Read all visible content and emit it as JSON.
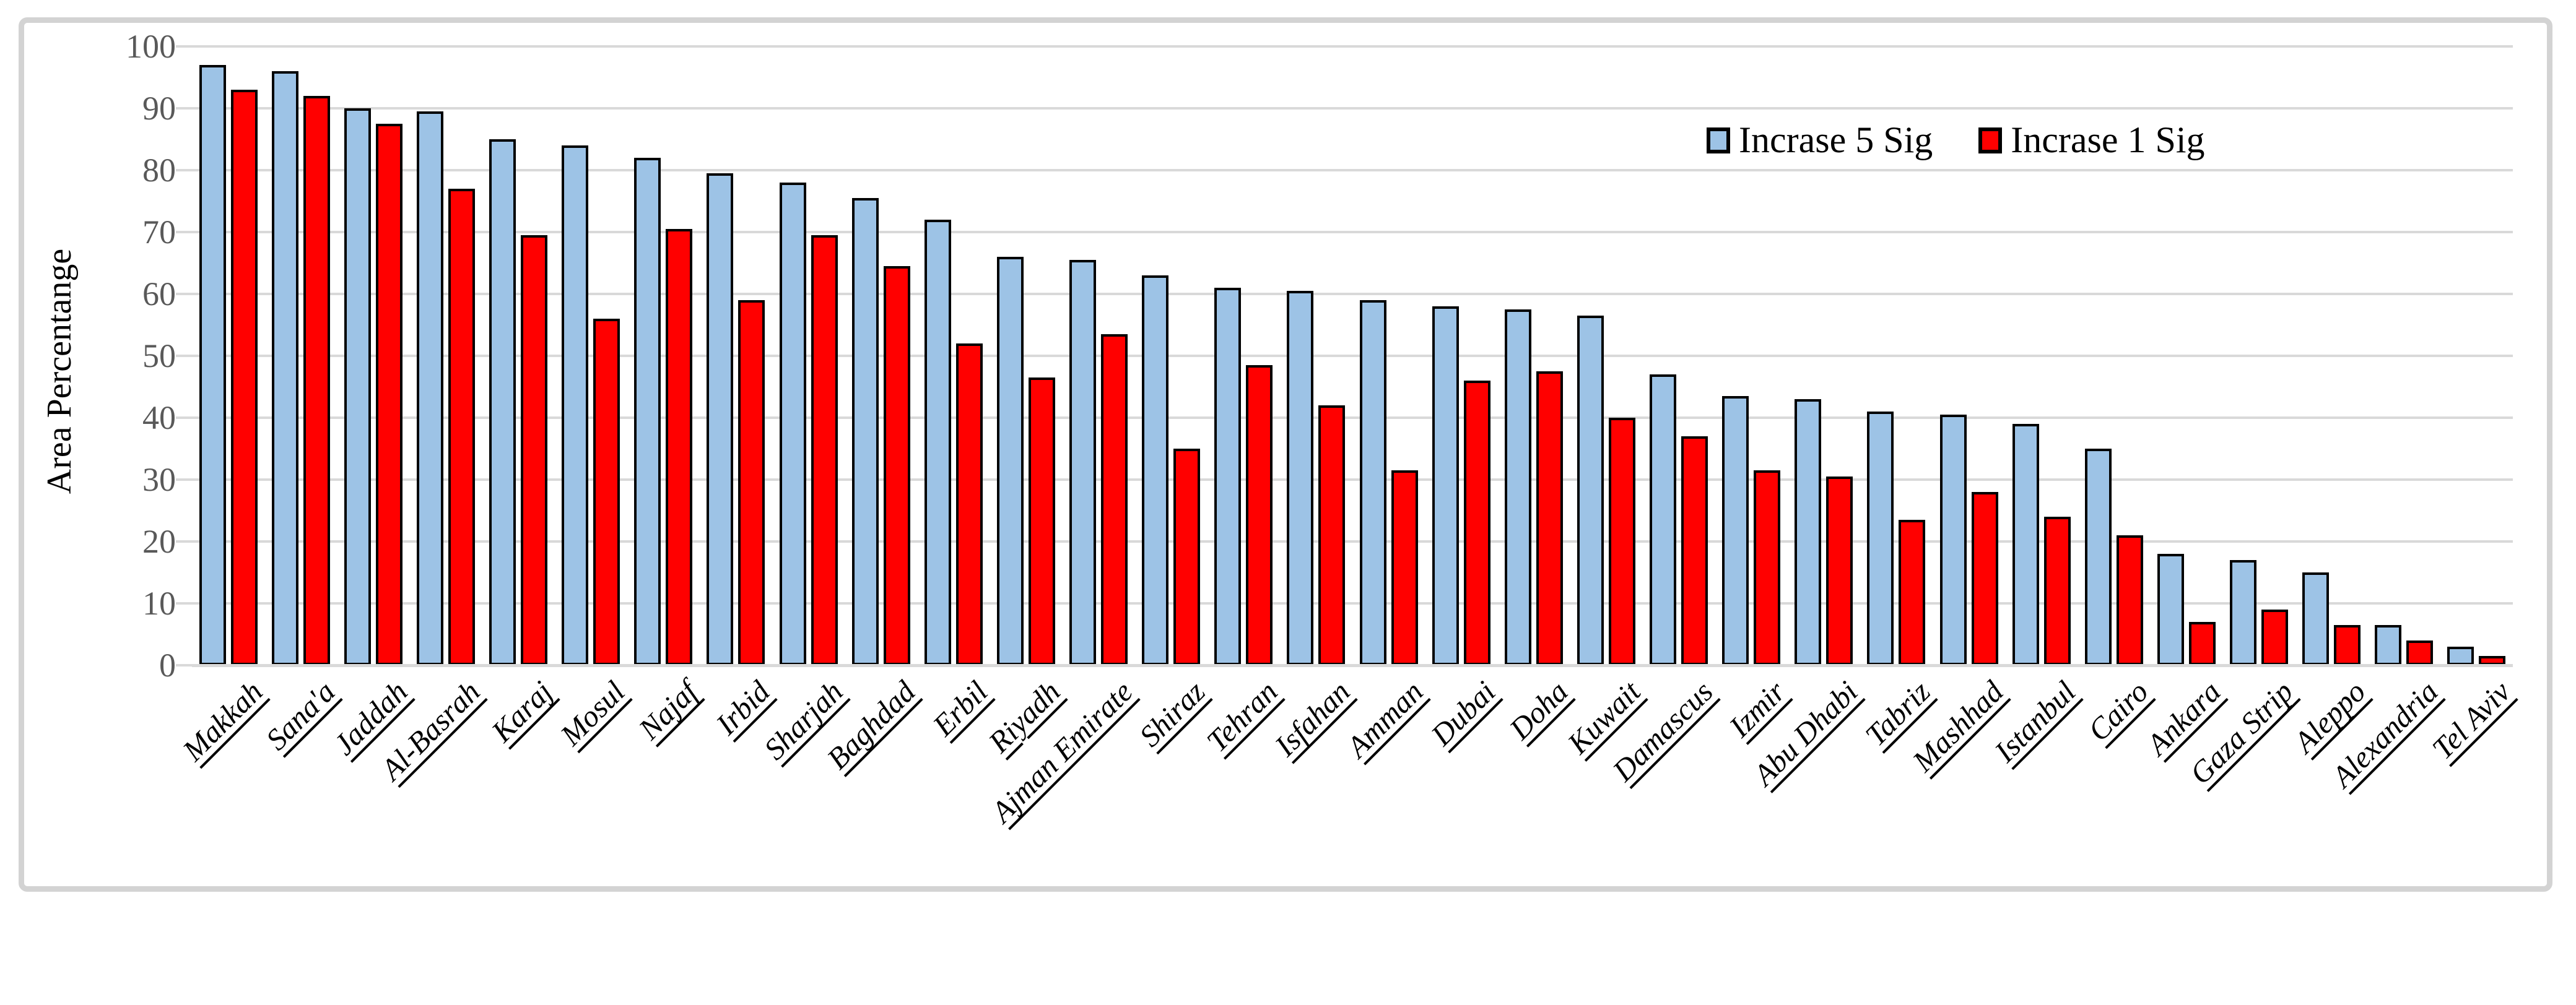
{
  "figure": {
    "kind": "clustered-column-chart",
    "background": "#ffffff",
    "frame_border_color": "#d3d3d3"
  },
  "colors": {
    "series_blue_fill": "#9dc3e6",
    "series_red_fill": "#ff0000",
    "bar_border": "#000000",
    "gridline": "#d9d9d9",
    "axis_line": "#d9d9d9",
    "ytick_label": "#595959",
    "xtick_label": "#000000",
    "axis_title": "#000000"
  },
  "chart_data": {
    "type": "bar",
    "title": "",
    "xlabel": "",
    "ylabel": "Area Percentange",
    "ylim": [
      0,
      100
    ],
    "yticks": [
      0,
      10,
      20,
      30,
      40,
      50,
      60,
      70,
      80,
      90,
      100
    ],
    "grid": "horizontal",
    "legend_position": "top-right-inside",
    "categories": [
      "Makkah",
      "Sana'a",
      "Jaddah",
      "Al-Basrah",
      "Karaj",
      "Mosul",
      "Najaf",
      "Irbid",
      "Sharjah",
      "Baghdad",
      "Erbil",
      "Riyadh",
      "Ajman Emirate",
      "Shiraz",
      "Tehran",
      "Isfahan",
      "Amman",
      "Dubai",
      "Doha",
      "Kuwait",
      "Damascus",
      "Izmir",
      "Abu Dhabi",
      "Tabriz",
      "Mashhad",
      "Istanbul",
      "Cairo",
      "Ankara",
      "Gaza Strip",
      "Aleppo",
      "Alexandria",
      "Tel Aviv"
    ],
    "series": [
      {
        "name": "Incrase 5 Sig",
        "color": "#9dc3e6",
        "values": [
          97,
          96,
          90,
          89.5,
          85,
          84,
          82,
          79.5,
          78,
          75.5,
          72,
          66,
          65.5,
          63,
          61,
          60.5,
          59,
          58,
          57.5,
          56.5,
          47,
          43.5,
          43,
          41,
          40.5,
          39,
          35,
          18,
          17,
          15,
          6.5,
          3
        ]
      },
      {
        "name": "Incrase 1 Sig",
        "color": "#ff0000",
        "values": [
          93,
          92,
          87.5,
          77,
          69.5,
          56,
          70.5,
          59,
          69.5,
          64.5,
          52,
          46.5,
          53.5,
          35,
          48.5,
          42,
          31.5,
          46,
          47.5,
          40,
          37,
          31.5,
          30.5,
          23.5,
          28,
          24,
          21,
          7,
          9,
          6.5,
          4,
          1.5
        ]
      }
    ]
  }
}
